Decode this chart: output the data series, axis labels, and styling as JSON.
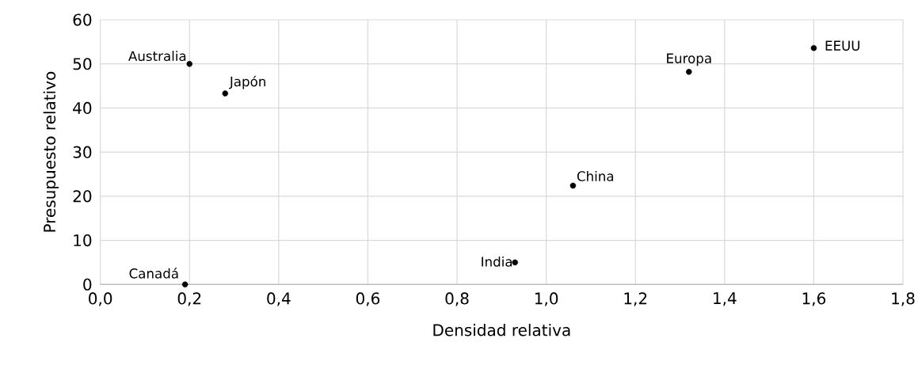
{
  "chart_data": {
    "type": "scatter",
    "xlabel": "Densidad relativa",
    "ylabel": "Presupuesto relativo",
    "xlim": [
      0,
      1.8
    ],
    "ylim": [
      0,
      60
    ],
    "xticks": [
      {
        "value": 0,
        "label": "0,0"
      },
      {
        "value": 0.2,
        "label": "0,2"
      },
      {
        "value": 0.4,
        "label": "0,4"
      },
      {
        "value": 0.6,
        "label": "0,6"
      },
      {
        "value": 0.8,
        "label": "0,8"
      },
      {
        "value": 1.0,
        "label": "1,0"
      },
      {
        "value": 1.2,
        "label": "1,2"
      },
      {
        "value": 1.4,
        "label": "1,4"
      },
      {
        "value": 1.6,
        "label": "1,6"
      },
      {
        "value": 1.8,
        "label": "1,8"
      }
    ],
    "yticks": [
      0,
      10,
      20,
      30,
      40,
      50,
      60
    ],
    "grid": true,
    "marker": "circle",
    "series": [
      {
        "name": "Australia",
        "color": "#000000",
        "x": [
          0.2
        ],
        "values": [
          50
        ]
      },
      {
        "name": "Japón",
        "color": "#000000",
        "x": [
          0.28
        ],
        "values": [
          43.3
        ]
      },
      {
        "name": "Canadá",
        "color": "#000000",
        "x": [
          0.19
        ],
        "values": [
          0
        ]
      },
      {
        "name": "India",
        "color": "#000000",
        "x": [
          0.93
        ],
        "values": [
          5
        ]
      },
      {
        "name": "China",
        "color": "#000000",
        "x": [
          1.06
        ],
        "values": [
          22.4
        ]
      },
      {
        "name": "Europa",
        "color": "#000000",
        "x": [
          1.32
        ],
        "values": [
          48.2
        ]
      },
      {
        "name": "EEUU",
        "color": "#000000",
        "x": [
          1.6
        ],
        "values": [
          53.6
        ]
      }
    ]
  }
}
